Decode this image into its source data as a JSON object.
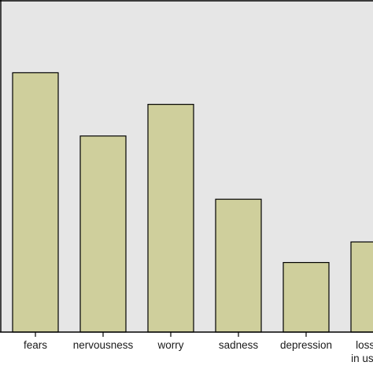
{
  "chart_data": {
    "type": "bar",
    "categories": [
      "fears",
      "nervousness",
      "worry",
      "sadness",
      "depression",
      "loss of i"
    ],
    "category_lines": [
      [
        "fears"
      ],
      [
        "nervousness"
      ],
      [
        "worry"
      ],
      [
        "sadness"
      ],
      [
        "depression"
      ],
      [
        "loss of i",
        "in usual a"
      ]
    ],
    "values": [
      82,
      62,
      72,
      42,
      22,
      28.5
    ],
    "ylim": [
      0,
      105
    ],
    "title": "",
    "xlabel": "",
    "ylabel": "",
    "grid": false,
    "colors": {
      "plot_background": "#e6e6e6",
      "bar_fill": "#cfcf9c",
      "bar_stroke": "#000000",
      "axis": "#000000",
      "text": "#1a1a1a"
    }
  }
}
